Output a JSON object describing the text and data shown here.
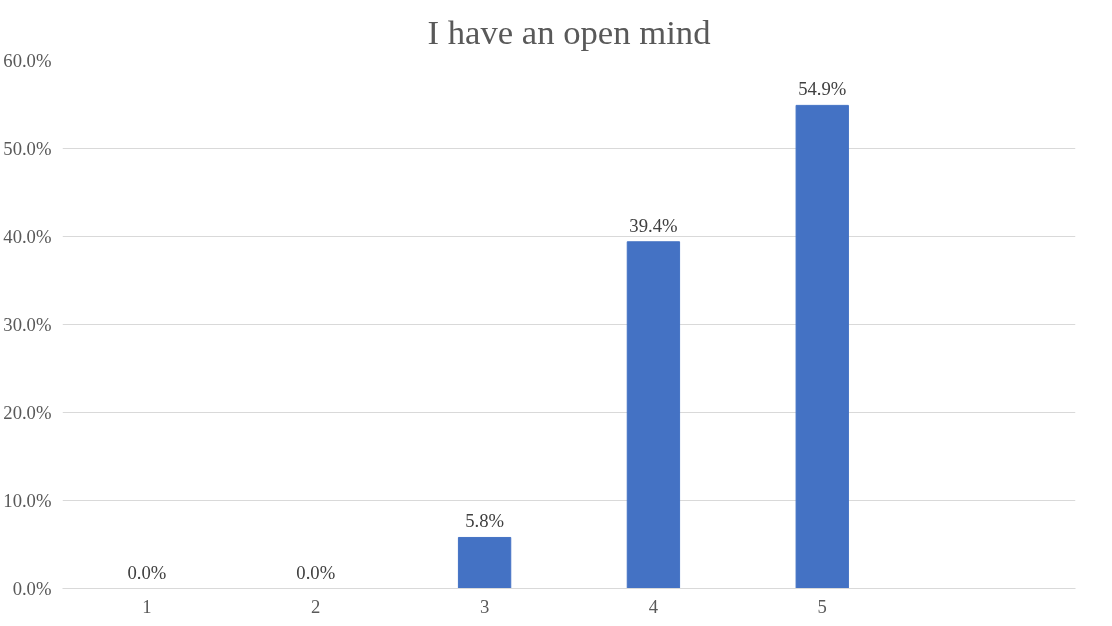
{
  "chart_data": {
    "type": "bar",
    "title": "I have an open mind",
    "categories": [
      "1",
      "2",
      "3",
      "4",
      "5",
      null
    ],
    "values": [
      0,
      0,
      5.8,
      39.4,
      54.9,
      null
    ],
    "value_labels": [
      "0.0%",
      "0.0%",
      "5.8%",
      "39.4%",
      "54.9%",
      null
    ],
    "color": "#4472c4",
    "ylim": [
      0,
      60
    ],
    "yticks": [
      {
        "value": 0,
        "label": "0.0%"
      },
      {
        "value": 10,
        "label": "10.0%"
      },
      {
        "value": 20,
        "label": "20.0%"
      },
      {
        "value": 30,
        "label": "30.0%"
      },
      {
        "value": 40,
        "label": "40.0%"
      },
      {
        "value": 50,
        "label": "50.0%"
      },
      {
        "value": 60,
        "label": "60.0%"
      }
    ],
    "grid": "y"
  }
}
